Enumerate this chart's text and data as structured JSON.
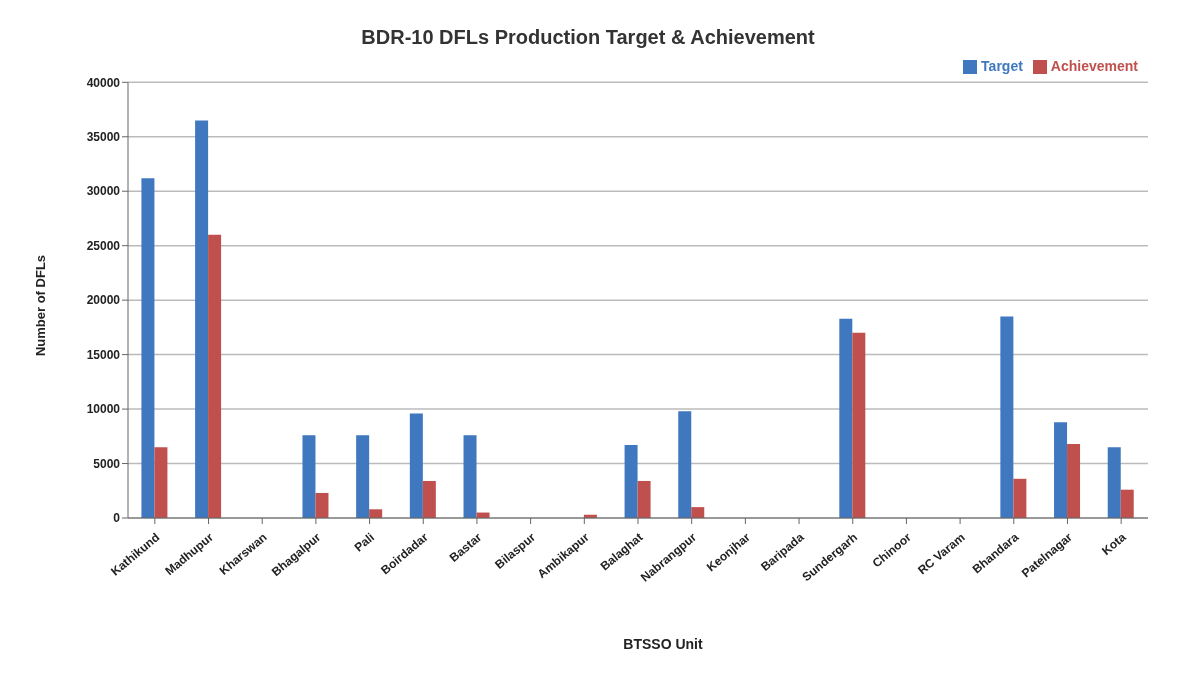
{
  "chart_data": {
    "type": "bar",
    "title": "BDR-10 DFLs Production Target & Achievement",
    "xlabel": "BTSSO Unit",
    "ylabel": "Number of DFLs",
    "categories": [
      "Kathikund",
      "Madhupur",
      "Kharswan",
      "Bhagalpur",
      "Pali",
      "Boirdadar",
      "Bastar",
      "Bilaspur",
      "Ambikapur",
      "Balaghat",
      "Nabrangpur",
      "Keonjhar",
      "Baripada",
      "Sundergarh",
      "Chinoor",
      "RC Varam",
      "Bhandara",
      "Patelnagar",
      "Kota"
    ],
    "series": [
      {
        "name": "Target",
        "color": "#3f78bf",
        "values": [
          31200,
          36500,
          0,
          7600,
          7600,
          9600,
          7600,
          0,
          0,
          6700,
          9800,
          0,
          0,
          18300,
          0,
          0,
          18500,
          8800,
          6500
        ]
      },
      {
        "name": "Achievement",
        "color": "#c0504d",
        "values": [
          6500,
          26000,
          0,
          2300,
          800,
          3400,
          500,
          0,
          300,
          3400,
          1000,
          0,
          0,
          17000,
          0,
          0,
          3600,
          6800,
          2600
        ]
      }
    ],
    "ylim": [
      0,
      40000
    ],
    "yticks": [
      0,
      5000,
      10000,
      15000,
      20000,
      25000,
      30000,
      35000,
      40000
    ],
    "grid": "y",
    "legend": "top right"
  }
}
